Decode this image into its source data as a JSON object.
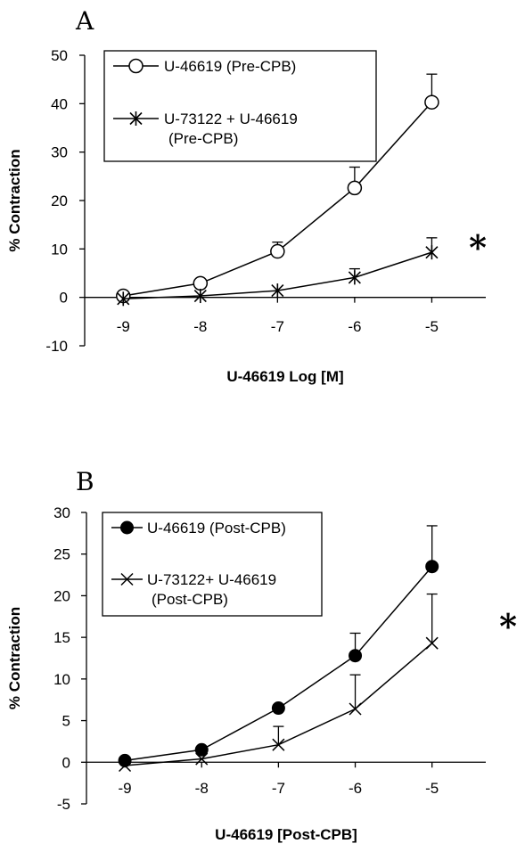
{
  "chart_data": [
    {
      "type": "line",
      "panel_label": "A",
      "xlabel": "U-46619 Log [M]",
      "ylabel": "% Contraction",
      "x": [
        -9,
        -8,
        -7,
        -6,
        -5
      ],
      "x_tick_labels": [
        "-9",
        "-8",
        "-7",
        "-6",
        "-5"
      ],
      "xlim": [
        -9.5,
        -4.3
      ],
      "ylim": [
        -10,
        50
      ],
      "y_ticks": [
        -10,
        0,
        10,
        20,
        30,
        40,
        50
      ],
      "grid": false,
      "legend_position": "top-left",
      "annotation": "*",
      "series": [
        {
          "name": "U-46619 (Pre-CPB)",
          "legend_lines": [
            "U-46619 (Pre-CPB)"
          ],
          "marker": "open-circle",
          "values": [
            0.3,
            2.9,
            9.5,
            22.6,
            40.3
          ],
          "error": [
            0,
            0,
            1.9,
            4.3,
            5.8
          ]
        },
        {
          "name": "U-73122 + U-46619 (Pre-CPB)",
          "legend_lines": [
            "U-73122 + U-46619",
            "(Pre-CPB)"
          ],
          "marker": "asterisk",
          "values": [
            -0.3,
            0.3,
            1.4,
            4.1,
            9.3
          ],
          "error": [
            0,
            0,
            0,
            1.8,
            3.0
          ]
        }
      ]
    },
    {
      "type": "line",
      "panel_label": "B",
      "xlabel": "U-46619 [Post-CPB]",
      "ylabel": "% Contraction",
      "x": [
        -9,
        -8,
        -7,
        -6,
        -5
      ],
      "x_tick_labels": [
        "-9",
        "-8",
        "-7",
        "-6",
        "-5"
      ],
      "xlim": [
        -9.5,
        -4.3
      ],
      "ylim": [
        -5,
        30
      ],
      "y_ticks": [
        -5,
        0,
        5,
        10,
        15,
        20,
        25,
        30
      ],
      "grid": false,
      "legend_position": "top-left",
      "annotation": "*",
      "series": [
        {
          "name": "U-46619 (Post-CPB)",
          "legend_lines": [
            "U-46619  (Post-CPB)"
          ],
          "marker": "filled-circle",
          "values": [
            0.2,
            1.5,
            6.5,
            12.8,
            23.5
          ],
          "error": [
            0,
            0,
            0,
            2.7,
            4.9
          ]
        },
        {
          "name": "U-73122+ U-46619 (Post-CPB)",
          "legend_lines": [
            "U-73122+ U-46619",
            "(Post-CPB)"
          ],
          "marker": "x-cross",
          "values": [
            -0.4,
            0.4,
            2.1,
            6.4,
            14.3
          ],
          "error": [
            0,
            0,
            2.2,
            4.1,
            5.9
          ]
        }
      ]
    }
  ]
}
